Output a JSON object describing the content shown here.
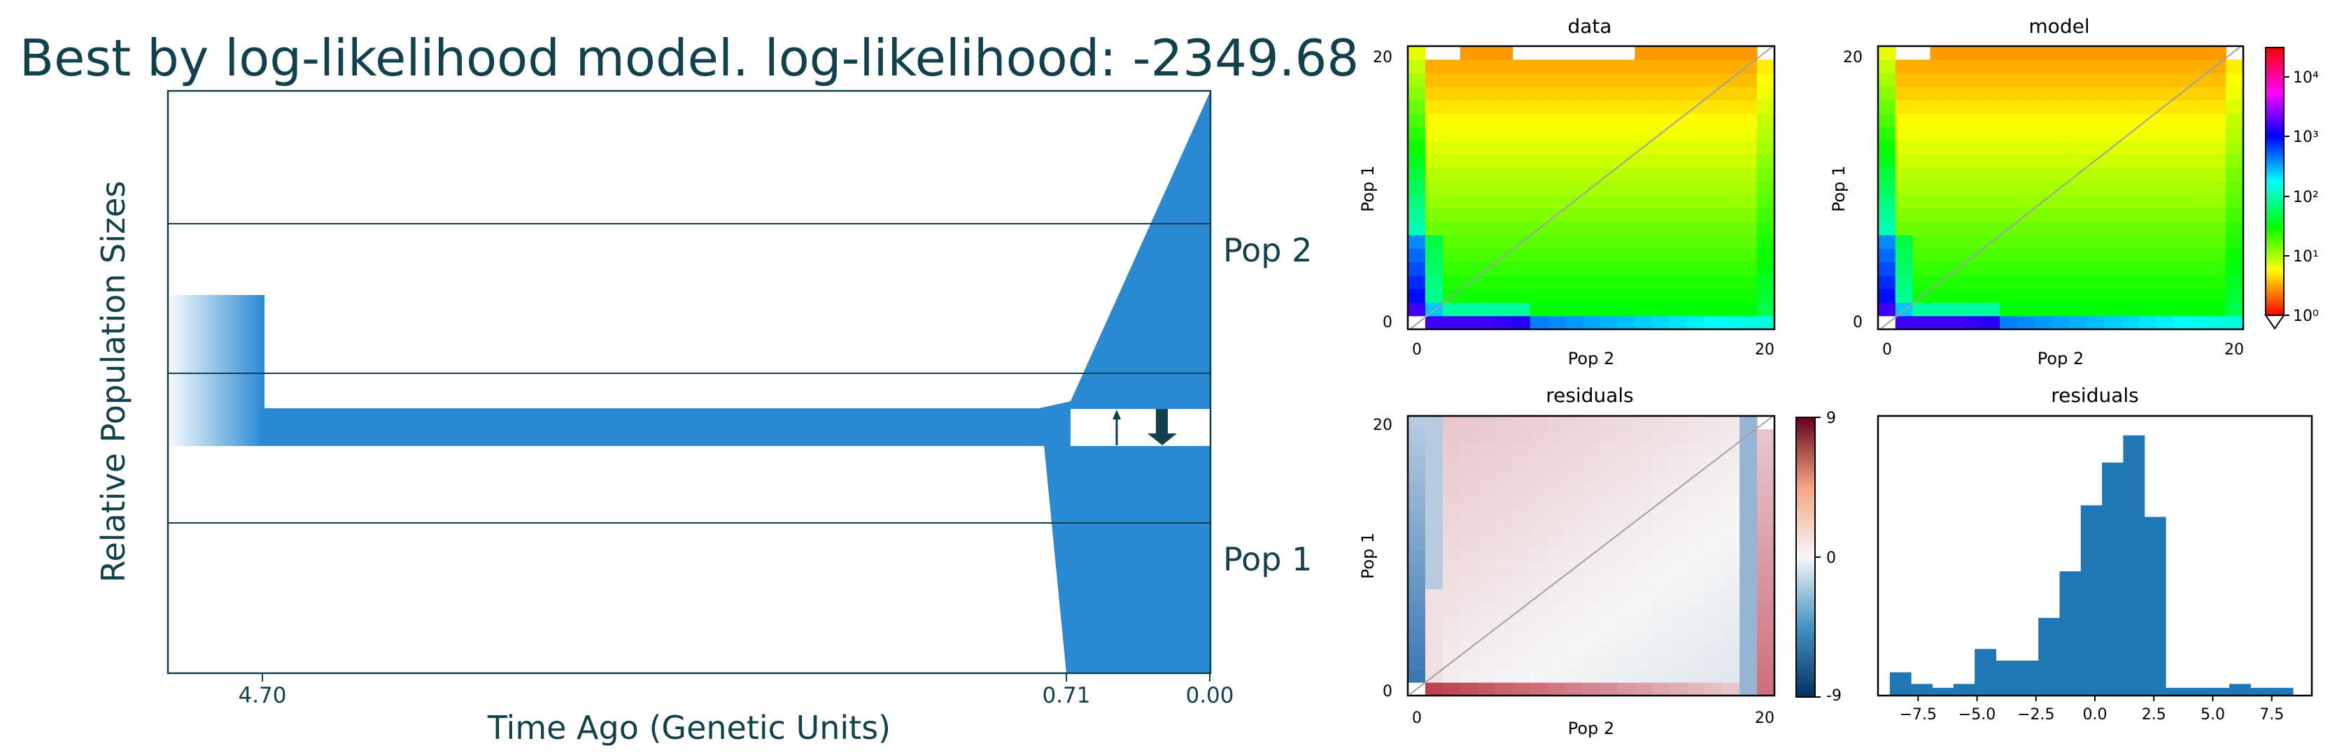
{
  "figure": {
    "title": "Best by log-likelihood model. log-likelihood: -2349.68"
  },
  "colors": {
    "pop_fill": "#2a89d3",
    "arrow": "#12414e",
    "axis_text": "#12414e",
    "hist_bar": "#1f77b4",
    "diag_line": "#a0a0a0"
  },
  "chart_data": [
    {
      "type": "area",
      "name": "demographic-model",
      "title": "Best by log-likelihood model. log-likelihood: -2349.68",
      "xlabel": "Time Ago (Genetic Units)",
      "ylabel": "Relative Population Sizes",
      "x_ticks": [
        "4.70",
        "0.71",
        "0.00"
      ],
      "population_labels": [
        "Pop 2",
        "Pop 1"
      ],
      "events": [
        {
          "time": 4.7,
          "description": "ancestral population size change"
        },
        {
          "time": 0.71,
          "description": "split into Pop 1 and Pop 2"
        }
      ],
      "migration_arrows": [
        {
          "from": "Pop 1",
          "to": "Pop 2",
          "relative_rate": "small"
        },
        {
          "from": "Pop 2",
          "to": "Pop 1",
          "relative_rate": "large"
        }
      ]
    },
    {
      "type": "heatmap",
      "name": "data-sfs",
      "title": "data",
      "xlabel": "Pop 2",
      "ylabel": "Pop 1",
      "x_ticks": [
        "0",
        "20"
      ],
      "y_ticks": [
        "0",
        "20"
      ],
      "xlim": [
        0,
        20
      ],
      "ylim": [
        0,
        20
      ],
      "scale": "log",
      "colormap": "hsv",
      "masked_cells": [
        [
          0,
          0
        ],
        [
          20,
          20
        ]
      ]
    },
    {
      "type": "heatmap",
      "name": "model-sfs",
      "title": "model",
      "xlabel": "Pop 2",
      "ylabel": "Pop 1",
      "x_ticks": [
        "0",
        "20"
      ],
      "y_ticks": [
        "0",
        "20"
      ],
      "xlim": [
        0,
        20
      ],
      "ylim": [
        0,
        20
      ],
      "scale": "log",
      "colormap": "hsv",
      "colorbar_ticks": [
        "10⁴",
        "10³",
        "10²",
        "10¹",
        "10⁰"
      ]
    },
    {
      "type": "heatmap",
      "name": "residuals-map",
      "title": "residuals",
      "xlabel": "Pop 2",
      "ylabel": "Pop 1",
      "x_ticks": [
        "0",
        "20"
      ],
      "y_ticks": [
        "0",
        "20"
      ],
      "xlim": [
        0,
        20
      ],
      "ylim": [
        0,
        20
      ],
      "colormap": "RdBu_r",
      "colorbar_ticks": [
        "9",
        "0",
        "-9"
      ],
      "colorbar_range": [
        -9,
        9
      ]
    },
    {
      "type": "bar",
      "name": "residuals-histogram",
      "title": "residuals",
      "x_ticks": [
        "−7.5",
        "−5.0",
        "−2.5",
        "0.0",
        "2.5",
        "5.0",
        "7.5"
      ],
      "xlim": [
        -9.2,
        9.2
      ],
      "bin_edges": [
        -8.7,
        -7.8,
        -6.9,
        -6.0,
        -5.1,
        -4.2,
        -3.3,
        -2.4,
        -1.5,
        -0.6,
        0.3,
        1.2,
        2.1,
        3.0,
        3.9,
        4.8,
        5.7,
        6.6,
        7.5,
        8.4
      ],
      "counts": [
        6,
        3,
        2,
        3,
        12,
        9,
        9,
        20,
        32,
        49,
        60,
        67,
        46,
        2,
        2,
        2,
        3,
        2,
        2
      ]
    }
  ]
}
